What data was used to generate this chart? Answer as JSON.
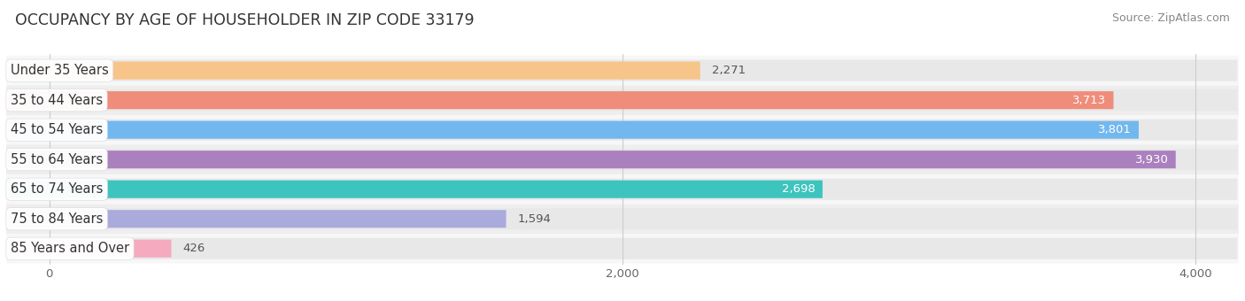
{
  "title": "OCCUPANCY BY AGE OF HOUSEHOLDER IN ZIP CODE 33179",
  "source": "Source: ZipAtlas.com",
  "categories": [
    "Under 35 Years",
    "35 to 44 Years",
    "45 to 54 Years",
    "55 to 64 Years",
    "65 to 74 Years",
    "75 to 84 Years",
    "85 Years and Over"
  ],
  "values": [
    2271,
    3713,
    3801,
    3930,
    2698,
    1594,
    426
  ],
  "bar_colors": [
    "#F7C48A",
    "#EF8C7A",
    "#72B8EE",
    "#AB80BE",
    "#3EC4BE",
    "#AAAADD",
    "#F5AABF"
  ],
  "xlim_min": -150,
  "xlim_max": 4150,
  "data_min": 0,
  "data_max": 4000,
  "xticks": [
    0,
    2000,
    4000
  ],
  "title_fontsize": 12.5,
  "label_fontsize": 10.5,
  "value_fontsize": 9.5,
  "source_fontsize": 9
}
